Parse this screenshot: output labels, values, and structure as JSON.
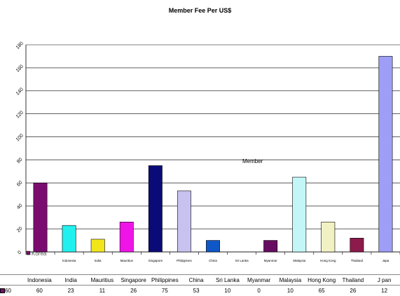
{
  "chart_data": {
    "type": "bar",
    "title": "Member Fee Per US$",
    "categories": [
      "Korea",
      "Indonesia",
      "India",
      "Mauritius",
      "Singapore",
      "Philippines",
      "China",
      "Sri Lanka",
      "Myanmar",
      "Malaysia",
      "Hong Kong",
      "Thailand",
      "Japan"
    ],
    "x_tick_labels": [
      "",
      "Indonesia",
      "India",
      "Mauritius",
      "Singapore",
      "Philippines",
      "China",
      "Sri Lanka",
      "Myanmar",
      "Malaysia",
      "Hong Kong",
      "Thailand",
      "Japa"
    ],
    "table_headers": [
      "",
      "Indonesia",
      "India",
      "Mauritius",
      "Singapore",
      "Philippines",
      "China",
      "Sri Lanka",
      "Myanmar",
      "Malaysia",
      "Hong Kong",
      "Thailand",
      "J pan"
    ],
    "series": [
      {
        "name": "Member",
        "values": [
          60,
          23,
          11,
          26,
          75,
          53,
          10,
          0,
          10,
          65,
          26,
          12,
          170
        ]
      }
    ],
    "value_labels": [
      "60",
      "23",
      "11",
      "26",
      "75",
      "53",
      "10",
      "0",
      "10",
      "65",
      "26",
      "12",
      "170"
    ],
    "legend_label": "Korea",
    "table_row_label": "60",
    "ylim": [
      0,
      180
    ],
    "y_ticks": [
      0,
      20,
      40,
      60,
      80,
      100,
      120,
      140,
      160,
      180
    ],
    "grid": true,
    "legend_placement": "left",
    "colors": [
      "#7b0c6f",
      "#22f0ee",
      "#f2e61a",
      "#ee15e6",
      "#0b0b78",
      "#c7c2ef",
      "#0f57c7",
      "#dddddd",
      "#660d62",
      "#c3f7f7",
      "#f2f1c3",
      "#8c1a4a",
      "#9e9ef7"
    ]
  }
}
